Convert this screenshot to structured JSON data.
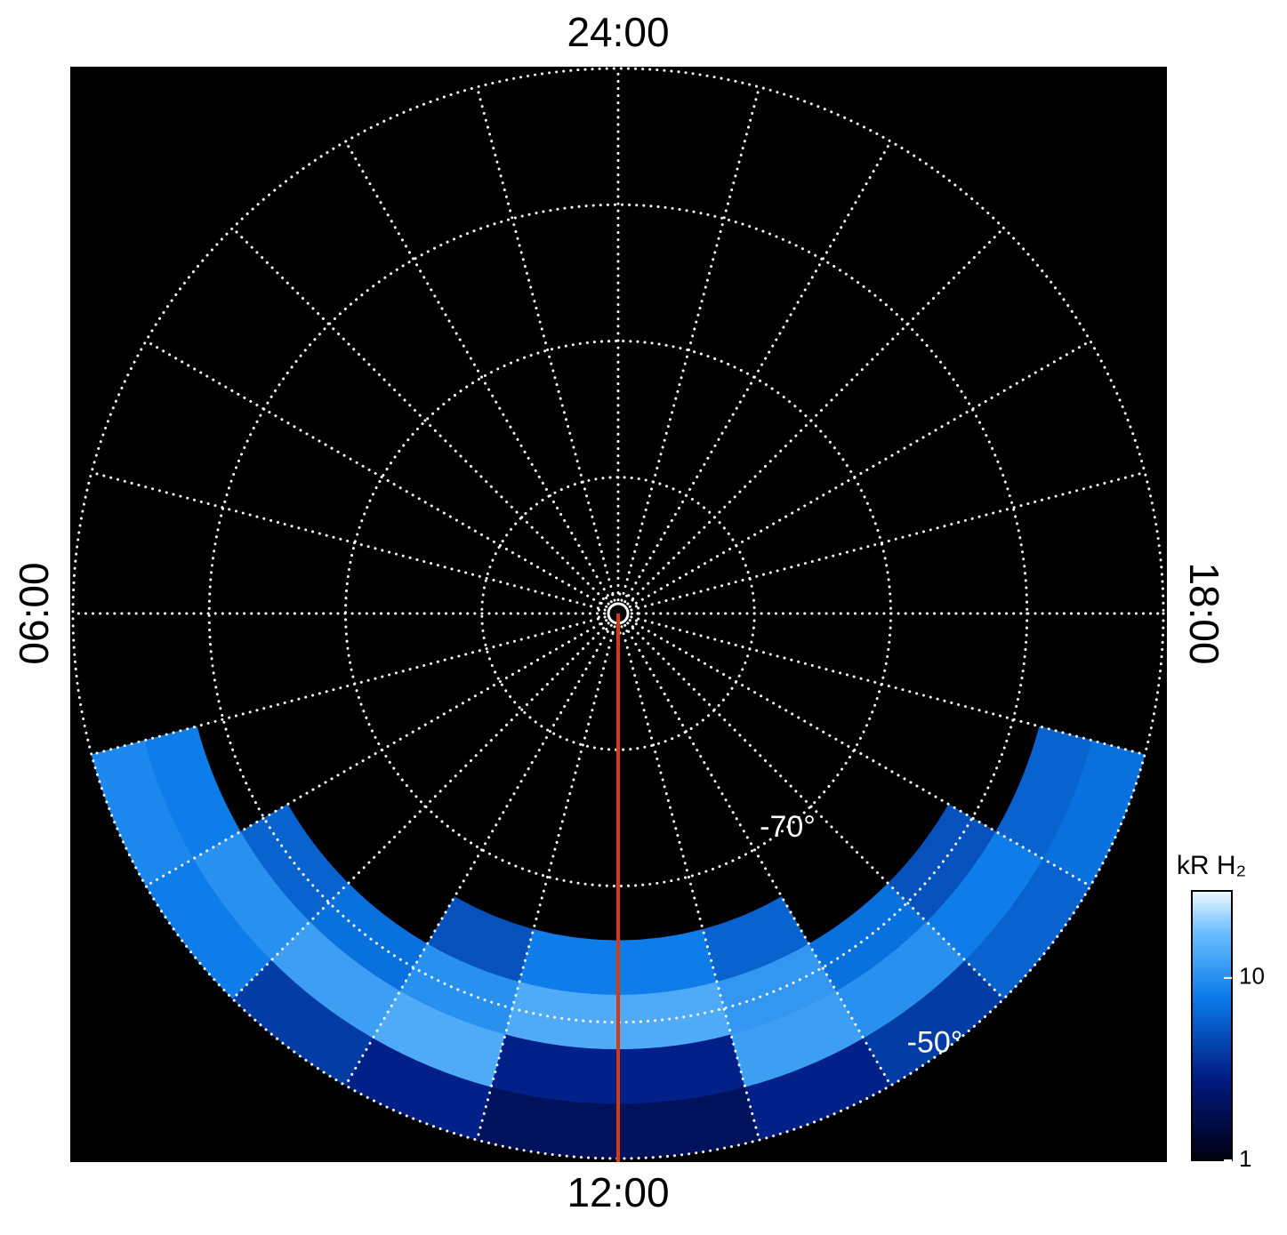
{
  "chart_data": {
    "type": "polar-image",
    "rlim": [
      -90,
      -50
    ],
    "lat_circles": [
      -80,
      -70,
      -60,
      -50
    ],
    "lat_labels": [
      {
        "value": -70,
        "label": "-70°"
      },
      {
        "value": -50,
        "label": "-50°"
      }
    ],
    "mlt_gridlines": [
      0,
      1,
      2,
      3,
      4,
      5,
      6,
      7,
      8,
      9,
      10,
      11,
      12,
      13,
      14,
      15,
      16,
      17,
      18,
      19,
      20,
      21,
      22,
      23
    ],
    "mlt_labels": [
      {
        "value": 24,
        "label": "24:00"
      },
      {
        "value": 12,
        "label": "12:00"
      },
      {
        "value": 6,
        "label": "06:00"
      },
      {
        "value": 18,
        "label": "18:00"
      }
    ],
    "mlt_bins": [
      7,
      8,
      9,
      10,
      11,
      12,
      13,
      14,
      15,
      16,
      17
    ],
    "lat_bins": [
      -66,
      -62,
      -58,
      -54,
      -50
    ],
    "values": [
      [
        null,
        null,
        8,
        9
      ],
      [
        null,
        6,
        10,
        8
      ],
      [
        null,
        7,
        12,
        4
      ],
      [
        5,
        10,
        14,
        3
      ],
      [
        8,
        14,
        3,
        2
      ],
      [
        8,
        14,
        3,
        2
      ],
      [
        6,
        11,
        12,
        3
      ],
      [
        null,
        7,
        10,
        4
      ],
      [
        null,
        5,
        8,
        6
      ],
      [
        null,
        null,
        6,
        7
      ]
    ],
    "meridian_mlt": 12,
    "meridian_color": "#d63a10",
    "colorbar": {
      "label": "kR H₂",
      "log": true,
      "lim": [
        1,
        30
      ],
      "ticks": [
        1,
        10
      ]
    }
  }
}
